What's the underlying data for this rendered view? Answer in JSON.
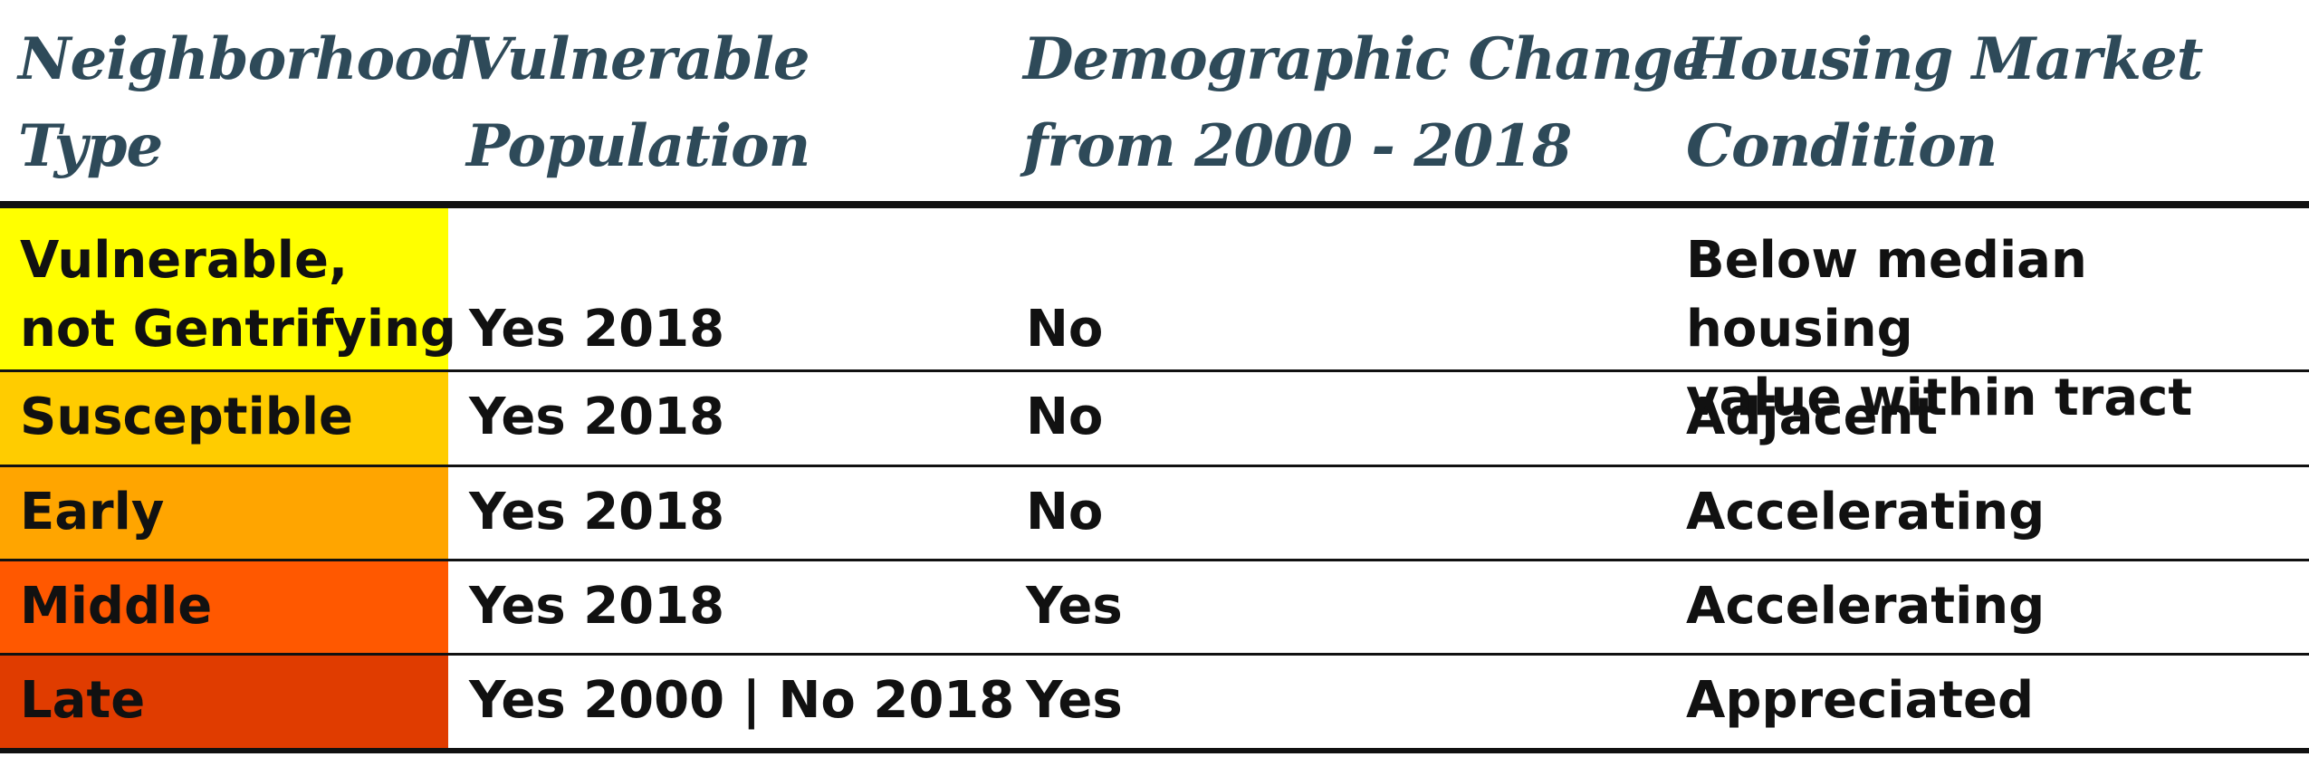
{
  "headers": [
    "Neighborhood\nType",
    "Vulnerable\nPopulation",
    "Demographic Change\nfrom 2000 - 2018",
    "Housing Market\nCondition"
  ],
  "rows": [
    {
      "type": "Vulnerable,\nnot Gentrifying",
      "vulnerable": "Yes 2018",
      "change": "No",
      "market": "Below median housing\nvalue within tract",
      "color": "#ffff00"
    },
    {
      "type": "Susceptible",
      "vulnerable": "Yes 2018",
      "change": "No",
      "market": "Adjacent",
      "color": "#ffcc00"
    },
    {
      "type": "Early",
      "vulnerable": "Yes 2018",
      "change": "No",
      "market": "Accelerating",
      "color": "#ffa500"
    },
    {
      "type": "Middle",
      "vulnerable": "Yes 2018",
      "change": "Yes",
      "market": "Accelerating",
      "color": "#ff5800"
    },
    {
      "type": "Late",
      "vulnerable": "Yes 2000 | No 2018",
      "change": "Yes",
      "market": "Appreciated",
      "color": "#e03c00"
    }
  ]
}
